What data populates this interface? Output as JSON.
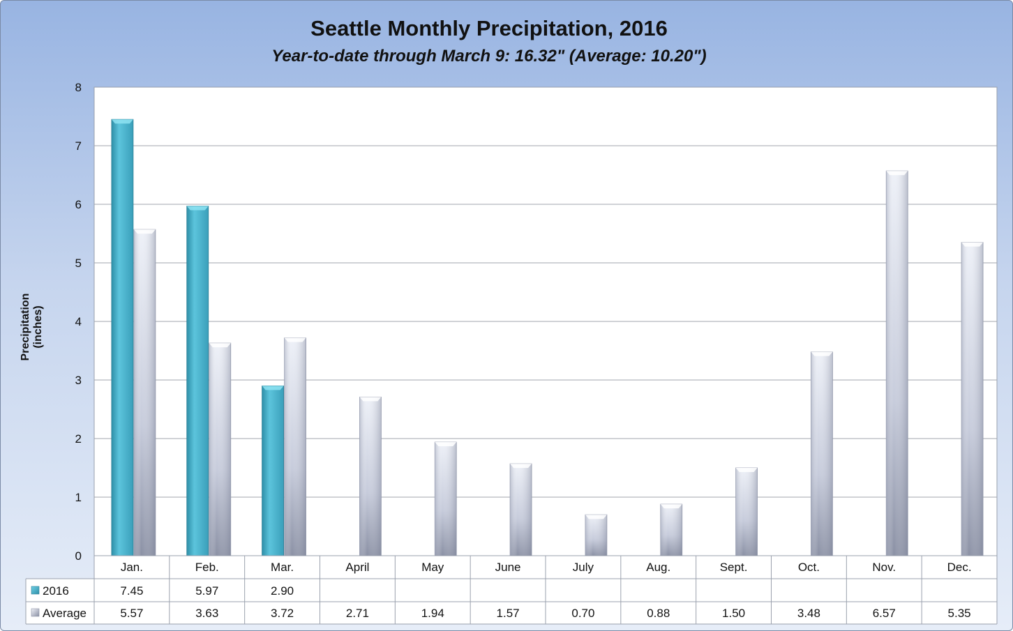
{
  "chart_data": {
    "type": "bar",
    "title": "Seattle Monthly Precipitation, 2016",
    "subtitle": "Year-to-date through March 9: 16.32\" (Average: 10.20\")",
    "ylabel": "Precipitation (inches)",
    "ylim": [
      0,
      8
    ],
    "yticks": [
      "0",
      "1",
      "2",
      "3",
      "4",
      "5",
      "6",
      "7",
      "8"
    ],
    "grid": true,
    "categories": [
      "Jan.",
      "Feb.",
      "Mar.",
      "April",
      "May",
      "June",
      "July",
      "Aug.",
      "Sept.",
      "Oct.",
      "Nov.",
      "Dec."
    ],
    "series": [
      {
        "name": "2016",
        "color": "#4bb3cc",
        "values": [
          7.45,
          5.97,
          2.9,
          null,
          null,
          null,
          null,
          null,
          null,
          null,
          null,
          null
        ],
        "labels": [
          "7.45",
          "5.97",
          "2.90",
          "",
          "",
          "",
          "",
          "",
          "",
          "",
          "",
          ""
        ]
      },
      {
        "name": "Average",
        "color": "#c9cfdf",
        "values": [
          5.57,
          3.63,
          3.72,
          2.71,
          1.94,
          1.57,
          0.7,
          0.88,
          1.5,
          3.48,
          6.57,
          5.35
        ],
        "labels": [
          "5.57",
          "3.63",
          "3.72",
          "2.71",
          "1.94",
          "1.57",
          "0.70",
          "0.88",
          "1.50",
          "3.48",
          "6.57",
          "5.35"
        ]
      }
    ],
    "data_table": true
  }
}
